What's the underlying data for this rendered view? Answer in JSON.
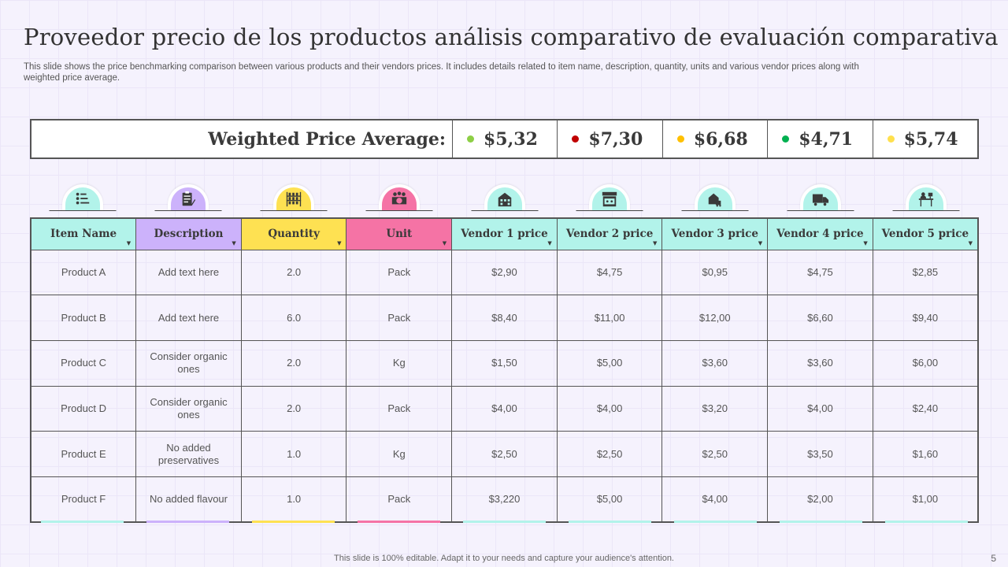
{
  "title": "Proveedor precio de los productos análisis comparativo de evaluación comparativa",
  "subtitle": "This slide shows the price benchmarking comparison between various products and their vendors prices. It includes details related to item name, description, quantity, units and various vendor prices along with weighted price average.",
  "weighted": {
    "label": "Weighted Price Average:",
    "values": [
      {
        "value": "$5,32",
        "color": "#8dcf45"
      },
      {
        "value": "$7,30",
        "color": "#c00000"
      },
      {
        "value": "$6,68",
        "color": "#ffc000"
      },
      {
        "value": "$4,71",
        "color": "#00b050"
      },
      {
        "value": "$5,74",
        "color": "#ffe04d"
      }
    ]
  },
  "columns": [
    {
      "label": "Item Name",
      "color": "#b2f3ea",
      "icon": "checklist-icon"
    },
    {
      "label": "Description",
      "color": "#ccb2fb",
      "icon": "clipboard-icon"
    },
    {
      "label": "Quantity",
      "color": "#fee152",
      "icon": "shelves-icon"
    },
    {
      "label": "Unit",
      "color": "#f573a5",
      "icon": "group-icon"
    },
    {
      "label": "Vendor 1 price",
      "color": "#b2f3ea",
      "icon": "building-icon"
    },
    {
      "label": "Vendor 2 price",
      "color": "#b2f3ea",
      "icon": "storefront-icon"
    },
    {
      "label": "Vendor 3 price",
      "color": "#b2f3ea",
      "icon": "warehouse-delivery-icon"
    },
    {
      "label": "Vendor 4 price",
      "color": "#b2f3ea",
      "icon": "truck-icon"
    },
    {
      "label": "Vendor 5 price",
      "color": "#b2f3ea",
      "icon": "cashier-desk-icon"
    }
  ],
  "rows": [
    [
      "Product A",
      "Add text here",
      "2.0",
      "Pack",
      "$2,90",
      "$4,75",
      "$0,95",
      "$4,75",
      "$2,85"
    ],
    [
      "Product B",
      "Add text here",
      "6.0",
      "Pack",
      "$8,40",
      "$11,00",
      "$12,00",
      "$6,60",
      "$9,40"
    ],
    [
      "Product C",
      "Consider organic ones",
      "2.0",
      "Kg",
      "$1,50",
      "$5,00",
      "$3,60",
      "$3,60",
      "$6,00"
    ],
    [
      "Product D",
      "Consider organic ones",
      "2.0",
      "Pack",
      "$4,00",
      "$4,00",
      "$3,20",
      "$4,00",
      "$2,40"
    ],
    [
      "Product E",
      "No added preservatives",
      "1.0",
      "Kg",
      "$2,50",
      "$2,50",
      "$2,50",
      "$3,50",
      "$1,60"
    ],
    [
      "Product F",
      "No added flavour",
      "1.0",
      "Pack",
      "$3,220",
      "$5,00",
      "$4,00",
      "$2,00",
      "$1,00"
    ]
  ],
  "footer": "This slide is 100% editable. Adapt it to your needs and capture your audience's attention.",
  "page_number": "5"
}
